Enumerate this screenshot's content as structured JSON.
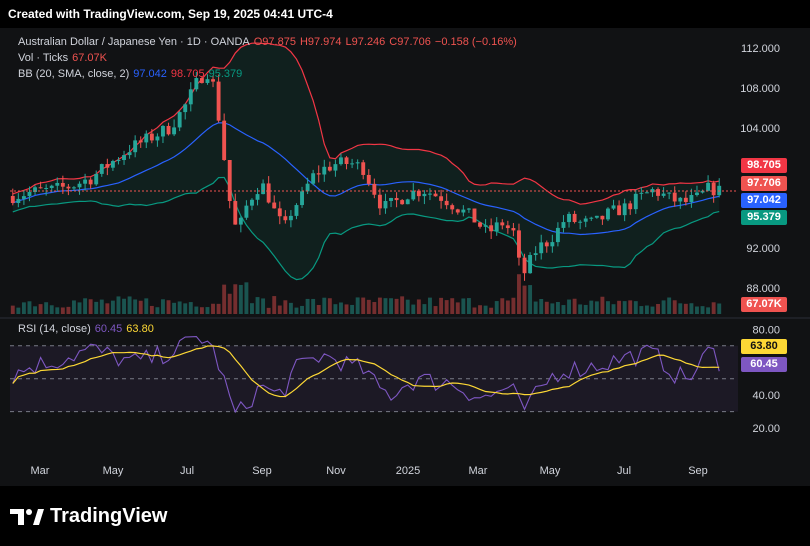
{
  "watermark": "Created with TradingView.com, Sep 19, 2025 04:41 UTC-4",
  "brand": "TradingView",
  "legend": {
    "symbol": "Australian Dollar / Japanese Yen · 1D · OANDA",
    "open": "O97.875",
    "high": "H97.974",
    "low": "L97.246",
    "close": "C97.706",
    "change": "−0.158 (−0.16%)",
    "vol_label": "Vol · Ticks",
    "vol_value": "67.07K",
    "bb_label": "BB (20, SMA, close, 2)",
    "bb_basis": "97.042",
    "bb_upper": "98.705",
    "bb_lower": "95.379",
    "rsi_label": "RSI (14, close)",
    "rsi_value": "60.45",
    "rsi_ma": "63.80"
  },
  "badges": {
    "upper": "98.705",
    "close": "97.706",
    "basis": "97.042",
    "lower": "95.379",
    "volume": "67.07K",
    "rsi_ma": "63.80",
    "rsi": "60.45"
  },
  "colors": {
    "up": "#26a69a",
    "down": "#ef5350",
    "bb_upper": "#f23645",
    "bb_basis": "#2962ff",
    "bb_lower": "#089981",
    "rsi": "#7e57c2",
    "rsi_ma": "#fdd835"
  },
  "chart_data": {
    "type": "candlestick",
    "price_axis_ticks": [
      "112.000",
      "108.000",
      "104.000",
      "92.000",
      "88.000"
    ],
    "rsi_axis_ticks": [
      "80.00",
      "40.00",
      "20.00"
    ],
    "time_axis_ticks": [
      "Mar",
      "May",
      "Jul",
      "Sep",
      "Nov",
      "2025",
      "Mar",
      "May",
      "Jul",
      "Sep"
    ],
    "price_ylim": [
      86,
      113
    ],
    "rsi_ylim": [
      14,
      82
    ],
    "rsi_levels": [
      70,
      50,
      30
    ],
    "price_keypoints": [
      [
        0,
        97.2
      ],
      [
        20,
        97.6
      ],
      [
        40,
        97.8
      ],
      [
        60,
        98.2
      ],
      [
        80,
        99.0
      ],
      [
        100,
        100.5
      ],
      [
        120,
        102.0
      ],
      [
        140,
        103.0
      ],
      [
        160,
        104.0
      ],
      [
        175,
        106.0
      ],
      [
        188,
        108.5
      ],
      [
        198,
        109.8
      ],
      [
        206,
        108.0
      ],
      [
        212,
        104.0
      ],
      [
        218,
        99.5
      ],
      [
        224,
        95.0
      ],
      [
        230,
        93.5
      ],
      [
        238,
        96.0
      ],
      [
        246,
        97.5
      ],
      [
        254,
        98.5
      ],
      [
        262,
        97.0
      ],
      [
        270,
        95.0
      ],
      [
        278,
        94.0
      ],
      [
        286,
        96.0
      ],
      [
        295,
        97.0
      ],
      [
        305,
        99.0
      ],
      [
        315,
        99.8
      ],
      [
        330,
        100.4
      ],
      [
        345,
        100.5
      ],
      [
        358,
        100.0
      ],
      [
        368,
        98.0
      ],
      [
        378,
        96.0
      ],
      [
        390,
        96.5
      ],
      [
        405,
        97.5
      ],
      [
        420,
        97.8
      ],
      [
        440,
        97.0
      ],
      [
        455,
        96.0
      ],
      [
        470,
        95.0
      ],
      [
        485,
        93.5
      ],
      [
        500,
        94.5
      ],
      [
        512,
        93.5
      ],
      [
        520,
        89.0
      ],
      [
        528,
        90.5
      ],
      [
        536,
        92.0
      ],
      [
        545,
        92.5
      ],
      [
        555,
        93.5
      ],
      [
        565,
        95.0
      ],
      [
        580,
        94.5
      ],
      [
        595,
        94.5
      ],
      [
        610,
        95.5
      ],
      [
        625,
        96.0
      ],
      [
        640,
        97.0
      ],
      [
        655,
        97.8
      ],
      [
        670,
        97.0
      ],
      [
        685,
        96.5
      ],
      [
        700,
        97.0
      ],
      [
        712,
        98.0
      ],
      [
        722,
        97.7
      ]
    ],
    "rsi_keypoints": [
      [
        0,
        52
      ],
      [
        20,
        58
      ],
      [
        40,
        60
      ],
      [
        60,
        64
      ],
      [
        80,
        68
      ],
      [
        100,
        64
      ],
      [
        120,
        60
      ],
      [
        140,
        62
      ],
      [
        160,
        66
      ],
      [
        175,
        70
      ],
      [
        190,
        76
      ],
      [
        200,
        72
      ],
      [
        210,
        60
      ],
      [
        220,
        40
      ],
      [
        228,
        28
      ],
      [
        236,
        32
      ],
      [
        246,
        40
      ],
      [
        256,
        46
      ],
      [
        266,
        40
      ],
      [
        276,
        42
      ],
      [
        288,
        55
      ],
      [
        300,
        60
      ],
      [
        315,
        64
      ],
      [
        330,
        62
      ],
      [
        345,
        58
      ],
      [
        360,
        55
      ],
      [
        372,
        45
      ],
      [
        385,
        40
      ],
      [
        400,
        46
      ],
      [
        415,
        50
      ],
      [
        430,
        48
      ],
      [
        445,
        48
      ],
      [
        460,
        44
      ],
      [
        472,
        40
      ],
      [
        486,
        38
      ],
      [
        500,
        44
      ],
      [
        512,
        42
      ],
      [
        520,
        30
      ],
      [
        530,
        36
      ],
      [
        540,
        44
      ],
      [
        552,
        52
      ],
      [
        565,
        56
      ],
      [
        580,
        56
      ],
      [
        595,
        58
      ],
      [
        610,
        60
      ],
      [
        625,
        63
      ],
      [
        640,
        64
      ],
      [
        652,
        66
      ],
      [
        665,
        60
      ],
      [
        678,
        52
      ],
      [
        690,
        50
      ],
      [
        700,
        56
      ],
      [
        712,
        68
      ],
      [
        722,
        60.45
      ]
    ]
  }
}
